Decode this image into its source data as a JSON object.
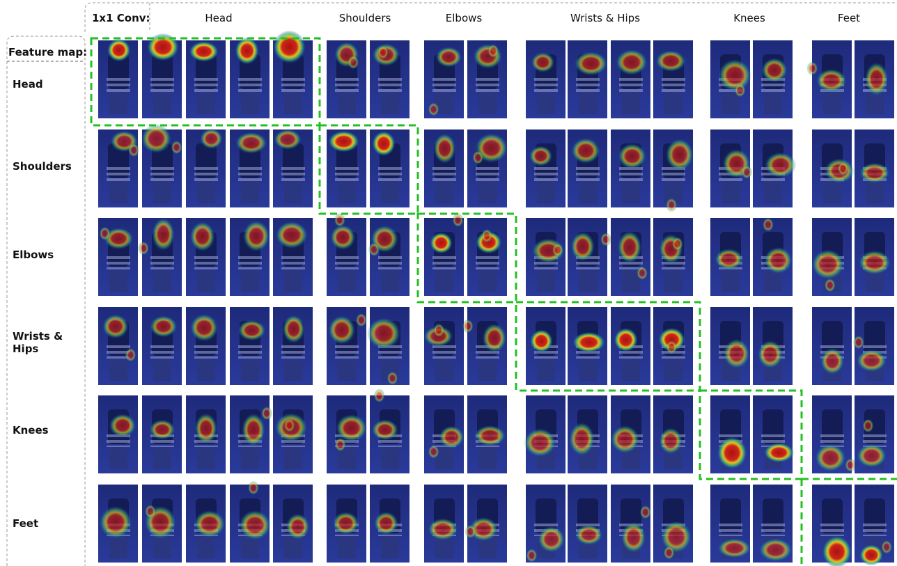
{
  "header": {
    "conv_label": "1x1 Conv:",
    "columns": [
      "Head",
      "Shoulders",
      "Elbows",
      "Wrists & Hips",
      "Knees",
      "Feet"
    ]
  },
  "sidebar": {
    "feature_map_label": "Feature map:",
    "rows": [
      "Head",
      "Shoulders",
      "Elbows",
      "Wrists & Hips",
      "Knees",
      "Feet"
    ]
  }
}
